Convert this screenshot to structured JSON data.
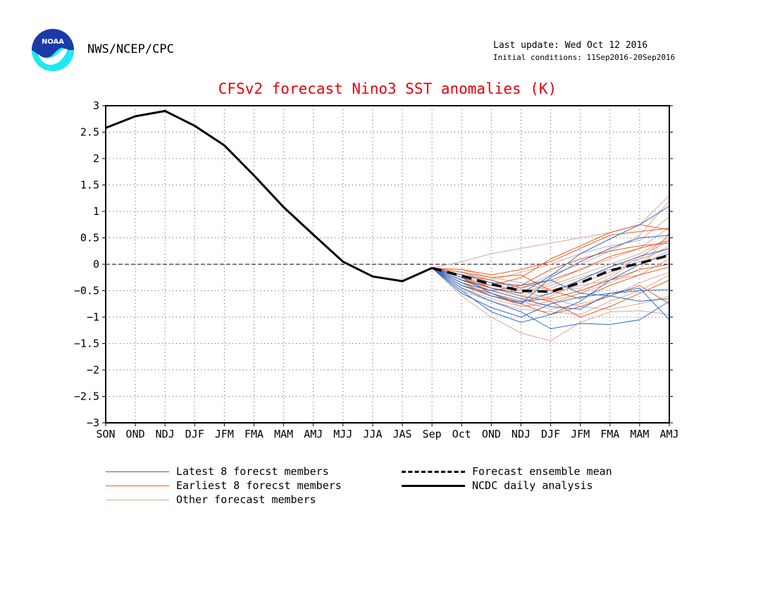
{
  "header": {
    "org": "NWS/NCEP/CPC",
    "logo_text": "NOAA",
    "last_update": "Last update: Wed Oct 12 2016",
    "initial_conditions": "Initial conditions: 11Sep2016-20Sep2016"
  },
  "colors": {
    "title": "#e8000b",
    "latest": "#2c6bd1",
    "earliest": "#ee5a1c",
    "other": "#d8a898",
    "mean": "#000000",
    "analysis": "#000000"
  },
  "chart_data": {
    "type": "line",
    "title": "CFSv2 forecast Nino3 SST anomalies (K)",
    "xlabel": "",
    "ylabel": "",
    "categories": [
      "SON",
      "OND",
      "NDJ",
      "DJF",
      "JFM",
      "FMA",
      "MAM",
      "AMJ",
      "MJJ",
      "JJA",
      "JAS",
      "Sep",
      "Oct",
      "OND",
      "NDJ",
      "DJF",
      "JFM",
      "FMA",
      "MAM",
      "AMJ"
    ],
    "y_ticks": [
      "3",
      "2.5",
      "2",
      "1.5",
      "1",
      "0.5",
      "0",
      "−0.5",
      "−1",
      "−1.5",
      "−2",
      "−2.5",
      "−3"
    ],
    "ylim": [
      -3,
      3
    ],
    "grid": true,
    "zero_line": true,
    "legend": {
      "placement": "bottom",
      "latest": "Latest 8 forecst members",
      "earliest": "Earliest 8 forecst members",
      "other": "Other forecast members",
      "mean": "Forecast ensemble mean",
      "analysis": "NCDC daily analysis"
    },
    "analysis": {
      "name": "NCDC daily analysis",
      "x_start": 0,
      "values": [
        2.58,
        2.8,
        2.9,
        2.62,
        2.25,
        1.68,
        1.08,
        0.56,
        0.05,
        -0.23,
        -0.32,
        -0.07
      ]
    },
    "ensemble_mean": {
      "name": "Forecast ensemble mean",
      "x_start": 11,
      "values": [
        -0.07,
        -0.22,
        -0.38,
        -0.5,
        -0.52,
        -0.35,
        -0.12,
        0.02,
        0.17
      ]
    },
    "latest_members": [
      [
        -0.07,
        -0.45,
        -0.7,
        -0.9,
        -1.22,
        -1.12,
        -1.14,
        -1.05,
        -0.7
      ],
      [
        -0.07,
        -0.55,
        -0.82,
        -1.0,
        -0.75,
        -0.62,
        -0.55,
        -0.5,
        -0.48
      ],
      [
        -0.07,
        -0.3,
        -0.45,
        -0.55,
        -0.22,
        0.2,
        0.48,
        0.75,
        1.1
      ],
      [
        -0.07,
        -0.4,
        -0.6,
        -0.72,
        -0.55,
        -0.3,
        -0.05,
        0.15,
        0.3
      ],
      [
        -0.07,
        -0.2,
        -0.35,
        -0.4,
        -0.3,
        -0.55,
        -0.6,
        -0.7,
        -0.65
      ],
      [
        -0.07,
        -0.5,
        -0.9,
        -1.1,
        -0.95,
        -0.7,
        -0.3,
        0.0,
        0.2
      ],
      [
        -0.07,
        -0.35,
        -0.5,
        -0.65,
        -0.8,
        -0.85,
        -0.55,
        -0.45,
        -1.05
      ],
      [
        -0.07,
        -0.25,
        -0.55,
        -0.75,
        -0.25,
        0.05,
        0.3,
        0.5,
        0.55
      ]
    ],
    "earliest_members": [
      [
        -0.07,
        -0.1,
        -0.2,
        -0.1,
        0.05,
        0.3,
        0.55,
        0.62,
        0.68
      ],
      [
        -0.07,
        -0.3,
        -0.4,
        -0.25,
        0.1,
        0.35,
        0.6,
        0.75,
        0.65
      ],
      [
        -0.07,
        -0.35,
        -0.6,
        -0.75,
        -0.95,
        -0.8,
        -0.6,
        -0.4,
        -0.75
      ],
      [
        -0.07,
        -0.2,
        -0.3,
        -0.45,
        -0.3,
        -0.1,
        0.15,
        0.3,
        0.45
      ],
      [
        -0.07,
        -0.4,
        -0.55,
        -0.7,
        -0.65,
        -0.5,
        -0.3,
        -0.1,
        0.0
      ],
      [
        -0.07,
        -0.15,
        -0.25,
        -0.2,
        -0.5,
        -0.65,
        -0.4,
        -0.2,
        -0.05
      ],
      [
        -0.07,
        -0.3,
        -0.5,
        -0.4,
        -0.1,
        0.1,
        0.25,
        0.35,
        0.4
      ],
      [
        -0.07,
        -0.25,
        -0.45,
        -0.6,
        -0.7,
        -1.0,
        -0.8,
        -0.55,
        -0.3
      ]
    ],
    "other_members": [
      [
        -0.07,
        0.05,
        0.2,
        0.3,
        0.4,
        0.5,
        0.6,
        0.75,
        1.3
      ],
      [
        -0.07,
        -0.6,
        -1.0,
        -1.3,
        -1.45,
        -1.1,
        -0.9,
        -0.88,
        -0.95
      ],
      [
        -0.07,
        -0.3,
        -0.5,
        -0.45,
        -0.2,
        0.0,
        0.25,
        0.55,
        1.2
      ],
      [
        -0.07,
        -0.2,
        -0.3,
        -0.15,
        0.0,
        0.2,
        0.35,
        0.45,
        0.9
      ],
      [
        -0.07,
        -0.45,
        -0.65,
        -0.8,
        -0.7,
        -0.55,
        -0.35,
        -0.1,
        0.6
      ],
      [
        -0.07,
        -0.25,
        -0.4,
        -0.5,
        -0.5,
        -0.3,
        -0.05,
        0.1,
        0.3
      ],
      [
        -0.07,
        -0.35,
        -0.55,
        -0.7,
        -0.85,
        -0.75,
        -0.6,
        -0.35,
        -0.15
      ],
      [
        -0.07,
        -0.15,
        -0.35,
        -0.55,
        -0.4,
        -0.2,
        0.0,
        0.2,
        0.5
      ],
      [
        -0.07,
        -0.4,
        -0.6,
        -0.75,
        -0.6,
        -0.35,
        -0.15,
        0.05,
        0.35
      ],
      [
        -0.07,
        -0.3,
        -0.45,
        -0.6,
        -0.45,
        -0.25,
        -0.1,
        0.0,
        0.25
      ],
      [
        -0.07,
        -0.2,
        -0.45,
        -0.55,
        -0.35,
        -0.1,
        0.1,
        0.3,
        0.7
      ],
      [
        -0.07,
        -0.5,
        -0.7,
        -0.85,
        -0.9,
        -0.95,
        -0.7,
        -0.5,
        -0.2
      ],
      [
        -0.07,
        -0.1,
        -0.25,
        -0.35,
        -0.5,
        -0.45,
        -0.2,
        0.15,
        0.45
      ],
      [
        -0.07,
        -0.35,
        -0.5,
        -0.65,
        -0.55,
        -0.4,
        -0.3,
        -0.2,
        0.1
      ],
      [
        -0.07,
        -0.25,
        -0.55,
        -0.8,
        -0.75,
        -0.55,
        -0.25,
        0.1,
        0.55
      ],
      [
        -0.07,
        -0.15,
        -0.3,
        -0.5,
        -0.65,
        -0.8,
        -0.85,
        -0.75,
        -0.6
      ]
    ]
  }
}
